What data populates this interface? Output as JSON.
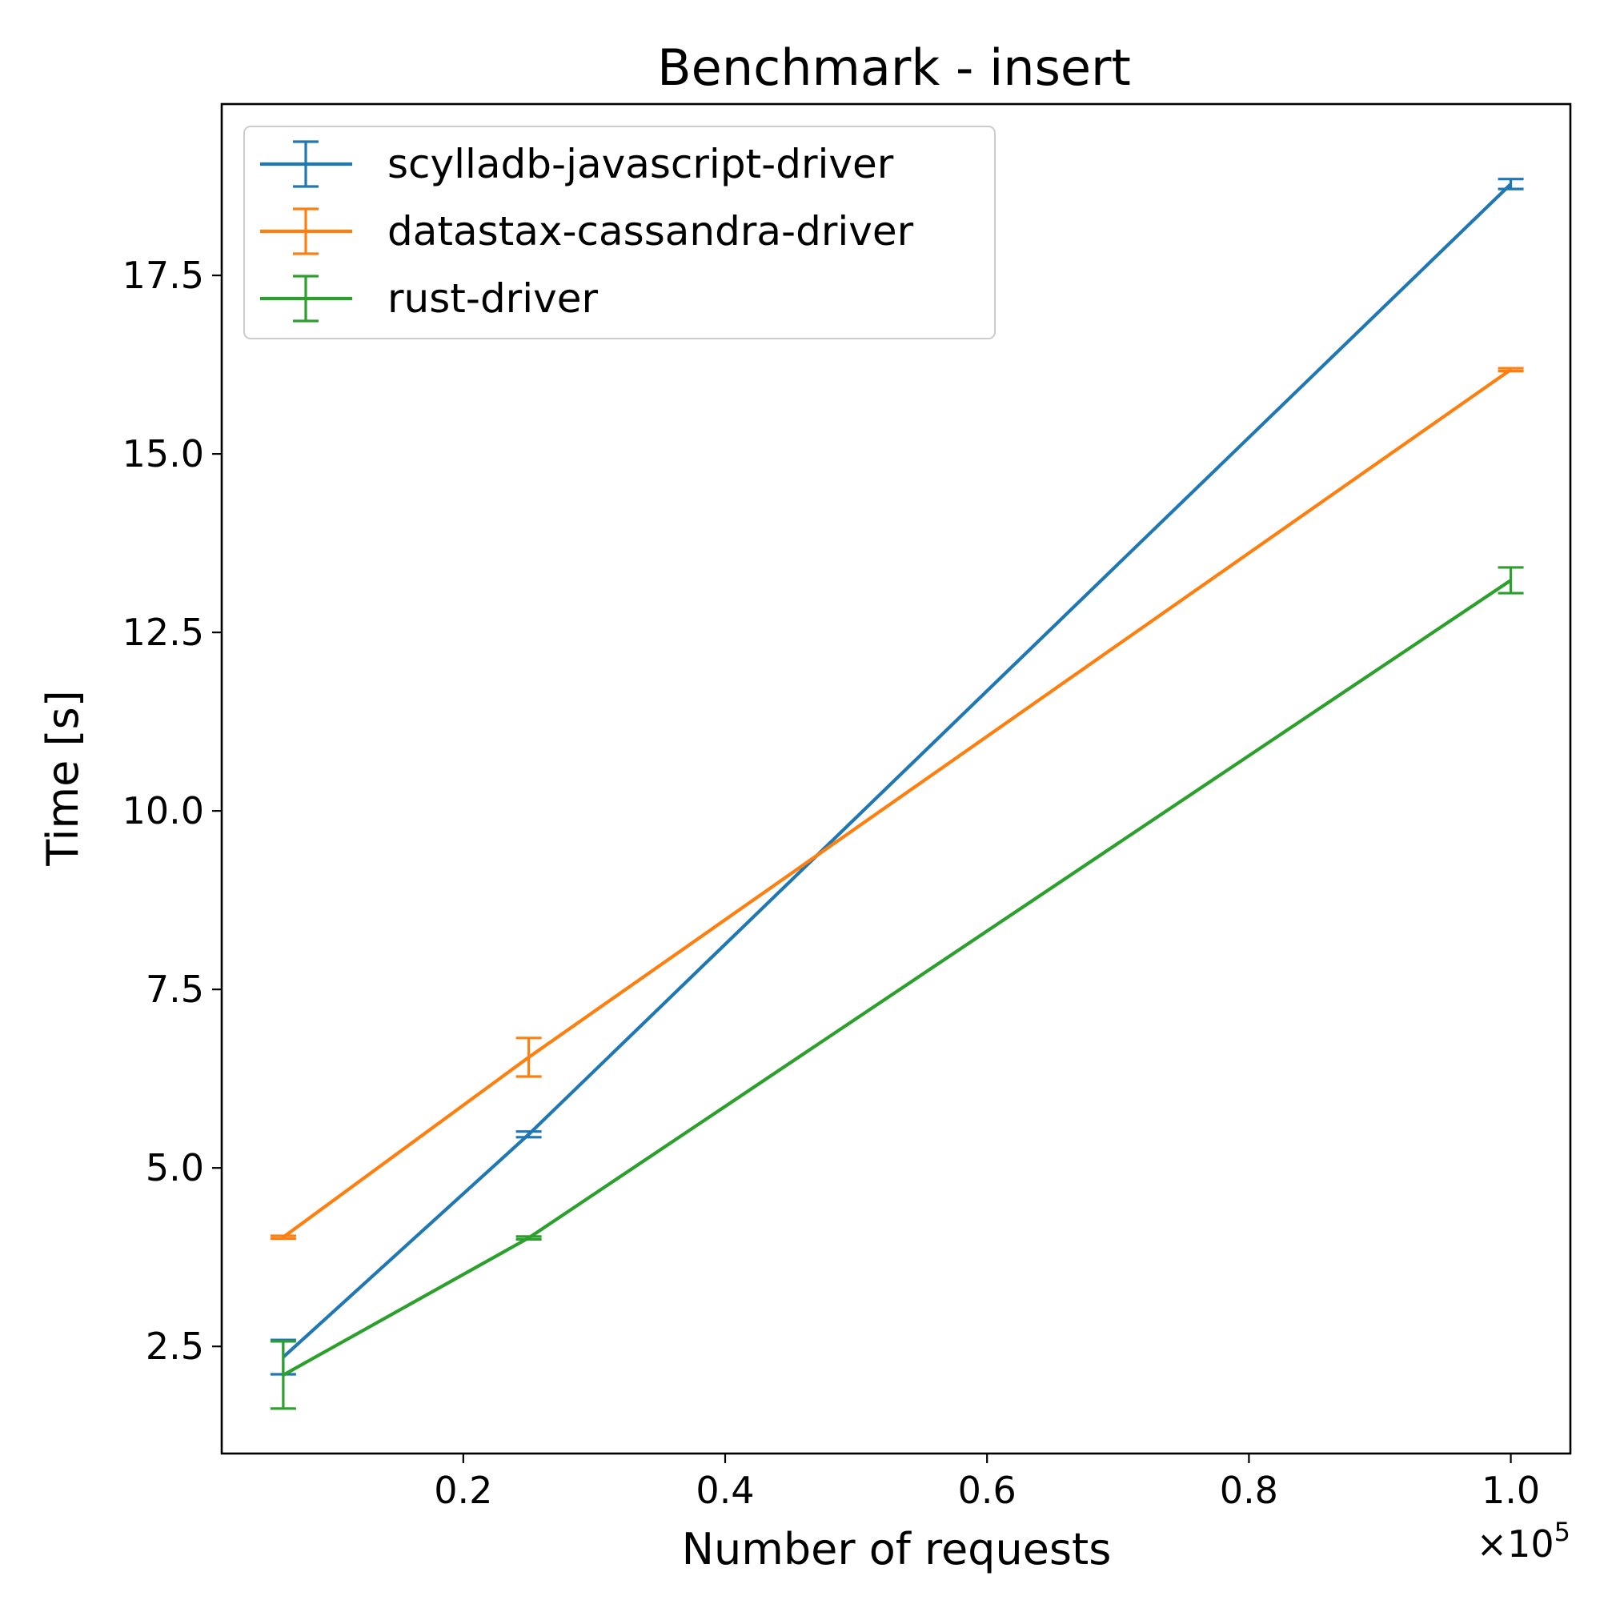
{
  "chart_data": {
    "type": "line",
    "title": "Benchmark - insert",
    "xlabel": "Number of requests",
    "ylabel": "Time [s]",
    "x_offset_label": "×10",
    "x_offset_exponent": "5",
    "x_scale": 100000,
    "xlim": [
      0.0155,
      1.0455
    ],
    "ylim": [
      1.0,
      19.9
    ],
    "x_ticks": [
      0.2,
      0.4,
      0.6,
      0.8,
      1.0
    ],
    "x_tick_labels": [
      "0.2",
      "0.4",
      "0.6",
      "0.8",
      "1.0"
    ],
    "y_ticks": [
      2.5,
      5.0,
      7.5,
      10.0,
      12.5,
      15.0,
      17.5
    ],
    "y_tick_labels": [
      "2.5",
      "5.0",
      "7.5",
      "10.0",
      "12.5",
      "15.0",
      "17.5"
    ],
    "grid": false,
    "legend_position": "top-left",
    "x": [
      0.0625,
      0.25,
      1.0
    ],
    "series": [
      {
        "name": "scylladb-javascript-driver",
        "color": "#1f77b4",
        "values": [
          2.35,
          5.47,
          18.78
        ],
        "errors": [
          0.24,
          0.04,
          0.07
        ]
      },
      {
        "name": "datastax-cassandra-driver",
        "color": "#ff7f0e",
        "values": [
          4.03,
          6.55,
          16.18
        ],
        "errors": [
          0.02,
          0.27,
          0.02
        ]
      },
      {
        "name": "rust-driver",
        "color": "#2ca02c",
        "values": [
          2.1,
          4.02,
          13.23
        ],
        "errors": [
          0.47,
          0.02,
          0.18
        ]
      }
    ]
  }
}
